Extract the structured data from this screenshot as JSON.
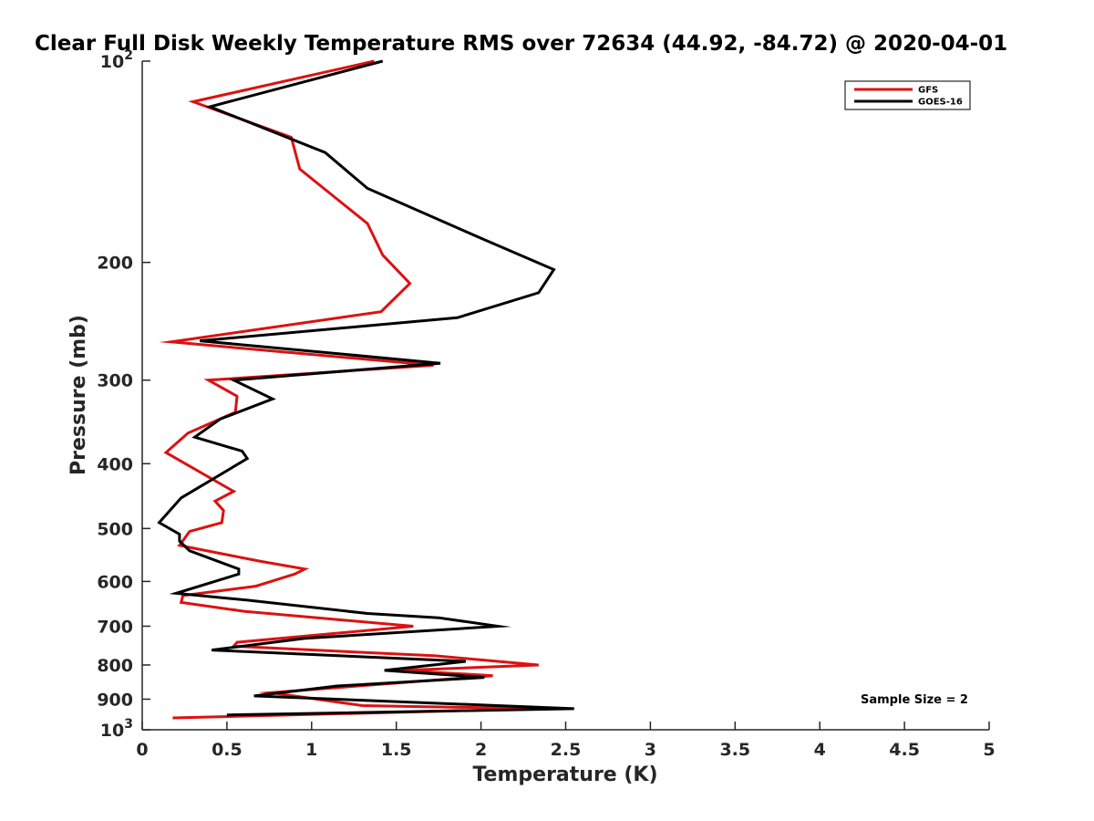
{
  "chart_data": {
    "type": "line",
    "title": "Clear Full Disk Weekly Temperature RMS over 72634 (44.92, -84.72) @ 2020-04-01",
    "xlabel": "Temperature (K)",
    "ylabel": "Pressure (mb)",
    "xlim": [
      0,
      5
    ],
    "ylim": [
      100,
      1000
    ],
    "yscale": "log",
    "yreversed": true,
    "grid": false,
    "x_ticks": [
      0,
      0.5,
      1,
      1.5,
      2,
      2.5,
      3,
      3.5,
      4,
      4.5,
      5
    ],
    "x_tick_labels": [
      "0",
      "0.5",
      "1",
      "1.5",
      "2",
      "2.5",
      "3",
      "3.5",
      "4",
      "4.5",
      "5"
    ],
    "y_ticks": [
      100,
      200,
      300,
      400,
      500,
      600,
      700,
      800,
      900,
      1000
    ],
    "y_tick_labels": [
      {
        "base": "10",
        "exp": "2"
      },
      {
        "text": "200"
      },
      {
        "text": "300"
      },
      {
        "text": "400"
      },
      {
        "text": "500"
      },
      {
        "text": "600"
      },
      {
        "text": "700"
      },
      {
        "text": "800"
      },
      {
        "text": "900"
      },
      {
        "base": "10",
        "exp": "3"
      }
    ],
    "legend_position": "top-right",
    "annotation": "Sample Size = 2",
    "series": [
      {
        "name": "GFS",
        "color": "#dd1111",
        "points": [
          [
            1.37,
            100
          ],
          [
            0.3,
            115
          ],
          [
            0.88,
            130
          ],
          [
            0.93,
            145
          ],
          [
            1.33,
            175
          ],
          [
            1.42,
            195
          ],
          [
            1.58,
            215
          ],
          [
            1.41,
            237
          ],
          [
            0.17,
            263
          ],
          [
            1.72,
            285
          ],
          [
            0.39,
            300
          ],
          [
            0.56,
            317
          ],
          [
            0.55,
            335
          ],
          [
            0.27,
            360
          ],
          [
            0.14,
            385
          ],
          [
            0.54,
            440
          ],
          [
            0.43,
            455
          ],
          [
            0.48,
            470
          ],
          [
            0.47,
            490
          ],
          [
            0.28,
            505
          ],
          [
            0.22,
            530
          ],
          [
            0.7,
            560
          ],
          [
            0.96,
            575
          ],
          [
            0.9,
            585
          ],
          [
            0.67,
            610
          ],
          [
            0.24,
            630
          ],
          [
            0.23,
            645
          ],
          [
            0.6,
            665
          ],
          [
            1.6,
            700
          ],
          [
            0.56,
            740
          ],
          [
            0.54,
            750
          ],
          [
            1.73,
            775
          ],
          [
            2.34,
            800
          ],
          [
            1.53,
            815
          ],
          [
            2.07,
            830
          ],
          [
            0.76,
            880
          ],
          [
            1.3,
            920
          ],
          [
            2.35,
            930
          ],
          [
            0.18,
            960
          ]
        ]
      },
      {
        "name": "GOES-16",
        "color": "#000000",
        "points": [
          [
            1.42,
            100
          ],
          [
            0.4,
            117
          ],
          [
            1.08,
            137
          ],
          [
            1.33,
            155
          ],
          [
            2.02,
            185
          ],
          [
            2.43,
            205
          ],
          [
            2.34,
            222
          ],
          [
            1.86,
            242
          ],
          [
            0.34,
            262
          ],
          [
            1.76,
            283
          ],
          [
            0.54,
            300
          ],
          [
            0.77,
            320
          ],
          [
            0.46,
            343
          ],
          [
            0.31,
            365
          ],
          [
            0.59,
            383
          ],
          [
            0.62,
            393
          ],
          [
            0.23,
            450
          ],
          [
            0.1,
            490
          ],
          [
            0.22,
            510
          ],
          [
            0.22,
            522
          ],
          [
            0.28,
            540
          ],
          [
            0.57,
            575
          ],
          [
            0.57,
            585
          ],
          [
            0.2,
            625
          ],
          [
            0.62,
            640
          ],
          [
            1.33,
            670
          ],
          [
            1.75,
            680
          ],
          [
            2.1,
            700
          ],
          [
            0.96,
            730
          ],
          [
            0.41,
            760
          ],
          [
            1.91,
            790
          ],
          [
            1.43,
            815
          ],
          [
            2.02,
            835
          ],
          [
            1.15,
            860
          ],
          [
            0.66,
            890
          ],
          [
            2.55,
            930
          ],
          [
            0.5,
            950
          ]
        ]
      }
    ]
  }
}
